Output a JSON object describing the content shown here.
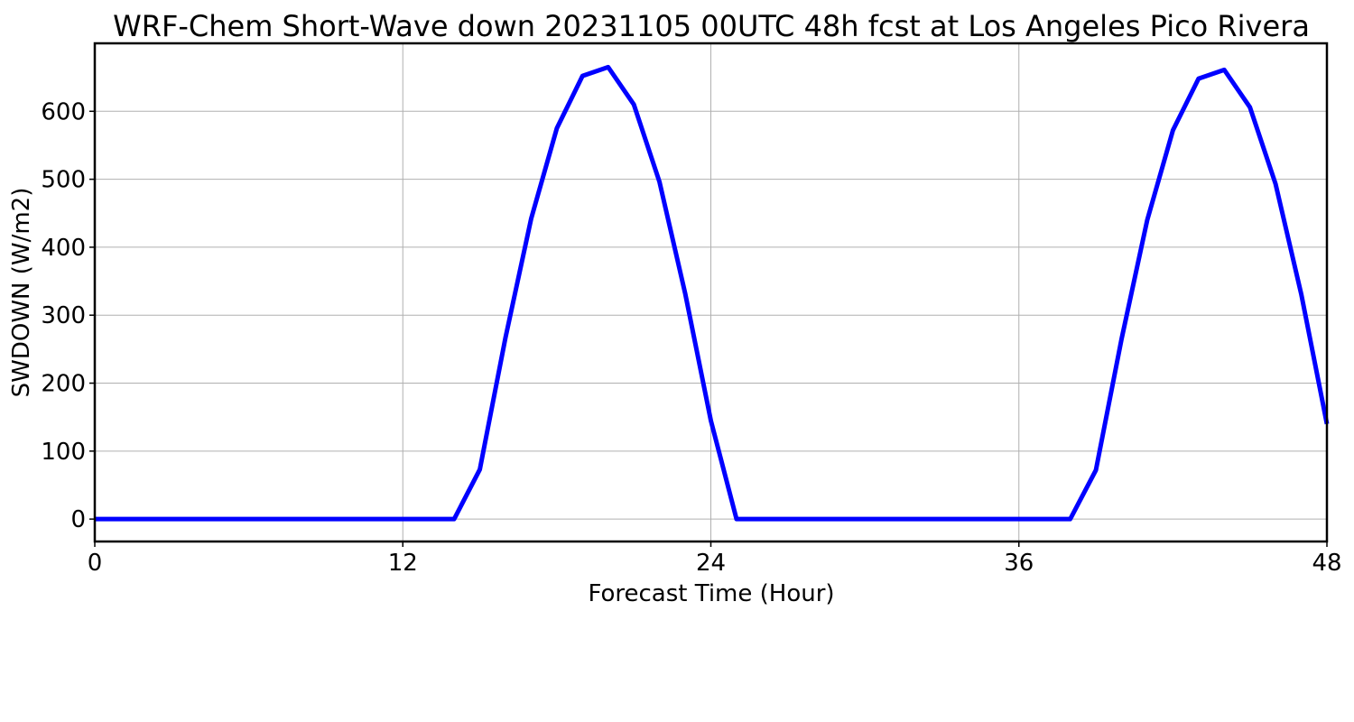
{
  "chart_data": {
    "type": "line",
    "title": "WRF-Chem Short-Wave down  20231105 00UTC 48h fcst at Los Angeles Pico Rivera",
    "xlabel": "Forecast Time (Hour)",
    "ylabel": "SWDOWN  (W/m2)",
    "xlim": [
      0,
      48
    ],
    "ylim": [
      -33,
      700
    ],
    "xticks": [
      0,
      12,
      24,
      36,
      48
    ],
    "yticks": [
      0,
      100,
      200,
      300,
      400,
      500,
      600
    ],
    "grid": true,
    "line_color": "#0000ff",
    "series": [
      {
        "x": [
          0,
          1,
          2,
          3,
          4,
          5,
          6,
          7,
          8,
          9,
          10,
          11,
          12,
          13,
          14,
          15,
          16,
          17,
          18,
          19,
          20,
          21,
          22,
          23,
          24,
          25,
          26,
          27,
          28,
          29,
          30,
          31,
          32,
          33,
          34,
          35,
          36,
          37,
          38,
          39,
          40,
          41,
          42,
          43,
          44,
          45,
          46,
          47,
          48
        ],
        "values": [
          0,
          0,
          0,
          0,
          0,
          0,
          0,
          0,
          0,
          0,
          0,
          0,
          0,
          0,
          0,
          73,
          267,
          442,
          575,
          652,
          665,
          610,
          496,
          332,
          145,
          0,
          0,
          0,
          0,
          0,
          0,
          0,
          0,
          0,
          0,
          0,
          0,
          0,
          0,
          72,
          265,
          440,
          572,
          648,
          661,
          606,
          493,
          331,
          140
        ]
      }
    ]
  }
}
